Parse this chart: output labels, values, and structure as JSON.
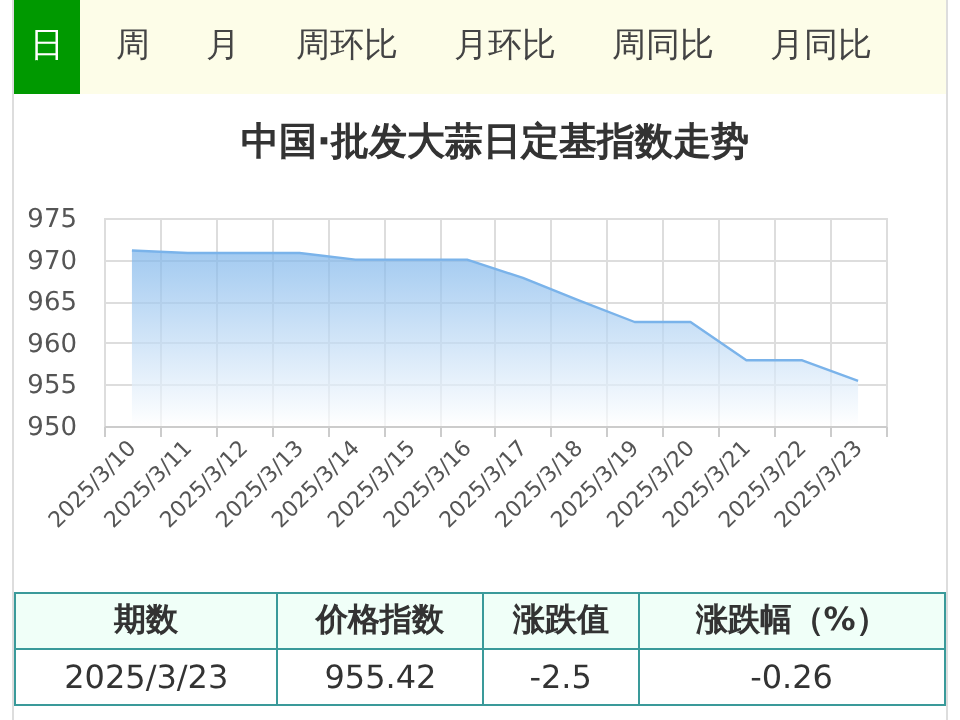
{
  "chart_data": {
    "type": "area",
    "title": "中国·批发大蒜日定基指数走势",
    "categories": [
      "2025/3/10",
      "2025/3/11",
      "2025/3/12",
      "2025/3/13",
      "2025/3/14",
      "2025/3/15",
      "2025/3/16",
      "2025/3/17",
      "2025/3/18",
      "2025/3/19",
      "2025/3/20",
      "2025/3/21",
      "2025/3/22",
      "2025/3/23"
    ],
    "series": [
      {
        "color": "#7ab3ea",
        "values": [
          971.1,
          970.8,
          970.8,
          970.8,
          970.0,
          970.0,
          970.0,
          967.8,
          965.1,
          962.5,
          962.5,
          957.9,
          957.9,
          955.42
        ]
      }
    ],
    "ylim": [
      950,
      975
    ],
    "yticks": [
      950,
      955,
      960,
      965,
      970,
      975
    ],
    "grid": true,
    "marker": "none",
    "annotations": [
      "日",
      "周",
      "月",
      "周环比",
      "月环比",
      "周同比",
      "月同比",
      "期数",
      "价格指数",
      "涨跌值",
      "涨跌幅（%）",
      "2025/3/23",
      "955.42",
      "-2.5",
      "-0.26"
    ]
  }
}
